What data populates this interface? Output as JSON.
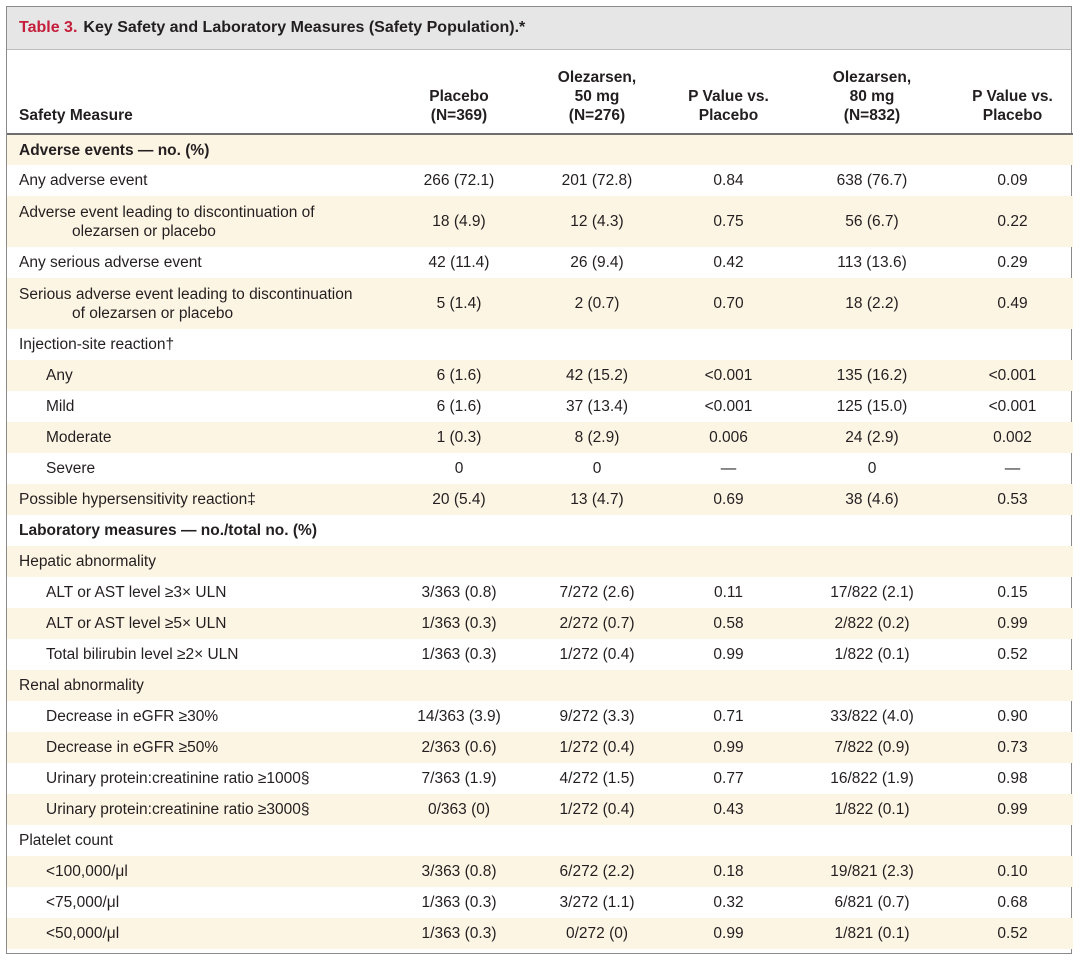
{
  "title": {
    "number": "Table 3.",
    "text": "Key Safety and Laboratory Measures (Safety Population).*"
  },
  "headers": {
    "measure": "Safety Measure",
    "placebo": [
      "Placebo",
      "(N=369)"
    ],
    "olez50": [
      "Olezarsen,",
      "50 mg",
      "(N=276)"
    ],
    "p50": [
      "P Value vs.",
      "Placebo"
    ],
    "olez80": [
      "Olezarsen,",
      "80 mg",
      "(N=832)"
    ],
    "p80": [
      "P Value vs.",
      "Placebo"
    ]
  },
  "rows": [
    {
      "type": "section",
      "label": "Adverse events — no. (%)"
    },
    {
      "type": "data",
      "label": "Any adverse event",
      "values": [
        "266 (72.1)",
        "201 (72.8)",
        "0.84",
        "638 (76.7)",
        "0.09"
      ]
    },
    {
      "type": "data",
      "label": "Adverse event leading to discontinuation of",
      "label2": "olezarsen or placebo",
      "values": [
        "18 (4.9)",
        "12 (4.3)",
        "0.75",
        "56 (6.7)",
        "0.22"
      ]
    },
    {
      "type": "data",
      "label": "Any serious adverse event",
      "values": [
        "42 (11.4)",
        "26 (9.4)",
        "0.42",
        "113 (13.6)",
        "0.29"
      ]
    },
    {
      "type": "data",
      "label": "Serious adverse event leading to discontinuation",
      "label2": "of olezarsen or placebo",
      "values": [
        "5 (1.4)",
        "2 (0.7)",
        "0.70",
        "18 (2.2)",
        "0.49"
      ]
    },
    {
      "type": "group",
      "label": "Injection-site reaction†"
    },
    {
      "type": "sub",
      "label": "Any",
      "values": [
        "6 (1.6)",
        "42 (15.2)",
        "<0.001",
        "135 (16.2)",
        "<0.001"
      ]
    },
    {
      "type": "sub",
      "label": "Mild",
      "values": [
        "6 (1.6)",
        "37 (13.4)",
        "<0.001",
        "125 (15.0)",
        "<0.001"
      ]
    },
    {
      "type": "sub",
      "label": "Moderate",
      "values": [
        "1 (0.3)",
        "8 (2.9)",
        "0.006",
        "24 (2.9)",
        "0.002"
      ]
    },
    {
      "type": "sub",
      "label": "Severe",
      "values": [
        "0",
        "0",
        "—",
        "0",
        "—"
      ]
    },
    {
      "type": "data",
      "label": "Possible hypersensitivity reaction‡",
      "values": [
        "20 (5.4)",
        "13 (4.7)",
        "0.69",
        "38 (4.6)",
        "0.53"
      ]
    },
    {
      "type": "section",
      "label": "Laboratory measures — no./total no. (%)"
    },
    {
      "type": "group",
      "label": "Hepatic abnormality"
    },
    {
      "type": "sub",
      "label": "ALT or AST level ≥3× ULN",
      "values": [
        "3/363 (0.8)",
        "7/272 (2.6)",
        "0.11",
        "17/822 (2.1)",
        "0.15"
      ]
    },
    {
      "type": "sub",
      "label": "ALT or AST level ≥5× ULN",
      "values": [
        "1/363 (0.3)",
        "2/272 (0.7)",
        "0.58",
        "2/822 (0.2)",
        "0.99"
      ]
    },
    {
      "type": "sub",
      "label": "Total bilirubin level ≥2× ULN",
      "values": [
        "1/363 (0.3)",
        "1/272 (0.4)",
        "0.99",
        "1/822 (0.1)",
        "0.52"
      ]
    },
    {
      "type": "group",
      "label": "Renal abnormality"
    },
    {
      "type": "sub",
      "label": "Decrease in eGFR ≥30%",
      "values": [
        "14/363 (3.9)",
        "9/272 (3.3)",
        "0.71",
        "33/822 (4.0)",
        "0.90"
      ]
    },
    {
      "type": "sub",
      "label": "Decrease in eGFR ≥50%",
      "values": [
        "2/363 (0.6)",
        "1/272 (0.4)",
        "0.99",
        "7/822 (0.9)",
        "0.73"
      ]
    },
    {
      "type": "sub",
      "label": "Urinary protein:creatinine ratio ≥1000§",
      "values": [
        "7/363 (1.9)",
        "4/272 (1.5)",
        "0.77",
        "16/822 (1.9)",
        "0.98"
      ]
    },
    {
      "type": "sub",
      "label": "Urinary protein:creatinine ratio ≥3000§",
      "values": [
        "0/363 (0)",
        "1/272 (0.4)",
        "0.43",
        "1/822 (0.1)",
        "0.99"
      ]
    },
    {
      "type": "group",
      "label": "Platelet count"
    },
    {
      "type": "sub",
      "label": "<100,000/μl",
      "values": [
        "3/363 (0.8)",
        "6/272 (2.2)",
        "0.18",
        "19/821 (2.3)",
        "0.10"
      ]
    },
    {
      "type": "sub",
      "label": "<75,000/μl",
      "values": [
        "1/363 (0.3)",
        "3/272 (1.1)",
        "0.32",
        "6/821 (0.7)",
        "0.68"
      ]
    },
    {
      "type": "sub",
      "label": "<50,000/μl",
      "values": [
        "1/363 (0.3)",
        "0/272 (0)",
        "0.99",
        "1/821 (0.1)",
        "0.52"
      ]
    }
  ]
}
